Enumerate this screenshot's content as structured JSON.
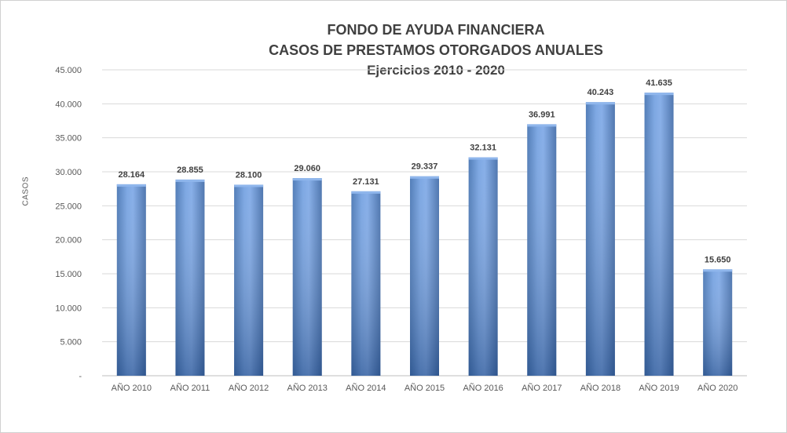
{
  "chart_data": {
    "type": "bar",
    "title": "FONDO DE AYUDA FINANCIERA",
    "subtitle": "CASOS DE PRESTAMOS OTORGADOS ANUALES",
    "subtitle2": "Ejercicios 2010 - 2020",
    "xlabel": "",
    "ylabel": "CASOS",
    "ylim": [
      0,
      45000
    ],
    "yticks": [
      0,
      5000,
      10000,
      15000,
      20000,
      25000,
      30000,
      35000,
      40000,
      45000
    ],
    "ytick_labels": [
      "-",
      "5.000",
      "10.000",
      "15.000",
      "20.000",
      "25.000",
      "30.000",
      "35.000",
      "40.000",
      "45.000"
    ],
    "categories": [
      "AÑO 2010",
      "AÑO 2011",
      "AÑO 2012",
      "AÑO 2013",
      "AÑO 2014",
      "AÑO 2015",
      "AÑO 2016",
      "AÑO 2017",
      "AÑO 2018",
      "AÑO 2019",
      "AÑO 2020"
    ],
    "values": [
      28164,
      28855,
      28100,
      29060,
      27131,
      29337,
      32131,
      36991,
      40243,
      41635,
      15650
    ],
    "value_labels": [
      "28.164",
      "28.855",
      "28.100",
      "29.060",
      "27.131",
      "29.337",
      "32.131",
      "36.991",
      "40.243",
      "41.635",
      "15.650"
    ],
    "grid": true,
    "legend": "none",
    "bar_color": "#5b8bd0"
  }
}
